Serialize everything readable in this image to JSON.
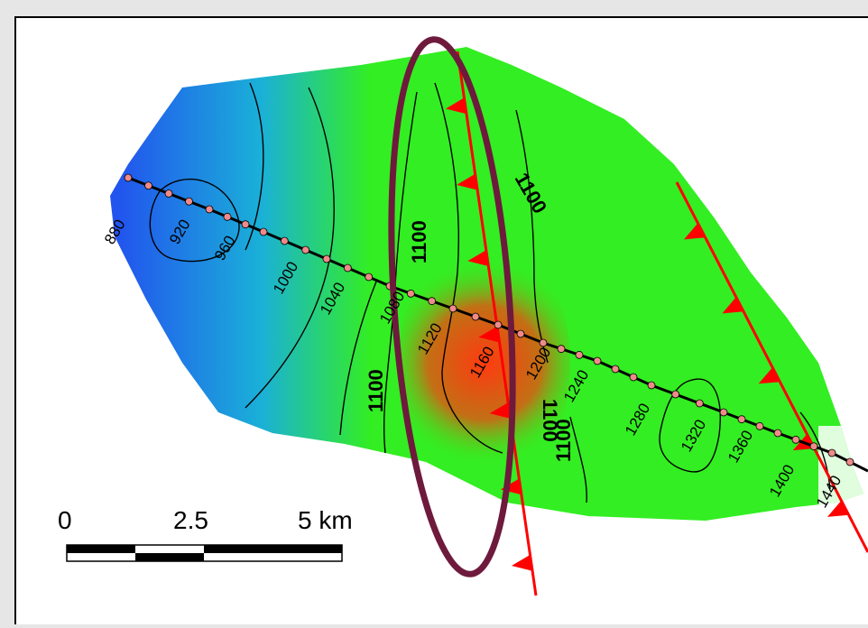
{
  "map": {
    "colors": {
      "low": "#2255ee",
      "mid_low": "#1ab0d8",
      "mid": "#33ee22",
      "high": "#ff3a10",
      "fault": "#ff0000",
      "ellipse": "#6e1a3c",
      "well": "#000000",
      "well_marker": "#f08a8a"
    },
    "contour_labels": [
      {
        "id": "c880",
        "text": "880"
      },
      {
        "id": "c920",
        "text": "920"
      },
      {
        "id": "c960",
        "text": "960"
      },
      {
        "id": "c1000",
        "text": "1000"
      },
      {
        "id": "c1040",
        "text": "1040"
      },
      {
        "id": "c1080",
        "text": "1080"
      },
      {
        "id": "c1120",
        "text": "1120"
      },
      {
        "id": "c1160",
        "text": "1160"
      },
      {
        "id": "c1200",
        "text": "1200"
      },
      {
        "id": "c1240",
        "text": "1240"
      },
      {
        "id": "c1280",
        "text": "1280"
      },
      {
        "id": "c1320",
        "text": "1320"
      },
      {
        "id": "c1360",
        "text": "1360"
      },
      {
        "id": "c1400",
        "text": "1400"
      },
      {
        "id": "c1440",
        "text": "1440"
      }
    ],
    "bold_labels": [
      {
        "id": "b1",
        "text": "1100"
      },
      {
        "id": "b2",
        "text": "1100"
      },
      {
        "id": "b3",
        "text": "1100"
      },
      {
        "id": "b4",
        "text": "1100"
      },
      {
        "id": "b5",
        "text": "1100"
      }
    ],
    "scale_bar": {
      "labels": [
        "0",
        "2.5",
        "5 km"
      ]
    }
  }
}
